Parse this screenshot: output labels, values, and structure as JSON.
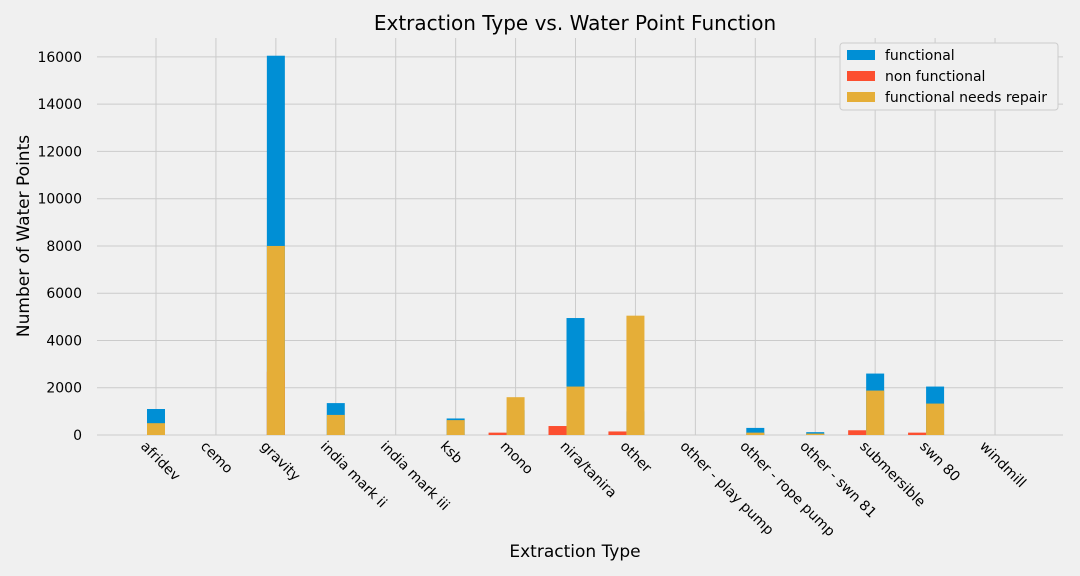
{
  "chart_data": {
    "type": "bar",
    "title": "Extraction Type vs. Water Point Function",
    "xlabel": "Extraction Type",
    "ylabel": "Number of Water Points",
    "ylim": [
      0,
      16800
    ],
    "yticks": [
      0,
      2000,
      4000,
      6000,
      8000,
      10000,
      12000,
      14000,
      16000
    ],
    "grid": true,
    "legend_position": "top-right",
    "categories": [
      "afridev",
      "cemo",
      "gravity",
      "india mark ii",
      "india mark iii",
      "ksb",
      "mono",
      "nira/tanira",
      "other",
      "other - play pump",
      "other - rope pump",
      "other - swn 81",
      "submersible",
      "swn 80",
      "windmill"
    ],
    "series": [
      {
        "name": "functional",
        "color": "#008fd5",
        "values": [
          1100,
          0,
          16050,
          1350,
          0,
          700,
          1050,
          4950,
          1000,
          0,
          300,
          120,
          2600,
          2050,
          0
        ],
        "offsets": [
          0,
          0,
          0,
          0,
          0,
          0,
          0,
          0,
          0,
          0,
          0,
          0,
          0,
          0,
          0
        ]
      },
      {
        "name": "non functional",
        "color": "#fc4f30",
        "values": [
          0,
          0,
          2680,
          0,
          0,
          0,
          100,
          380,
          150,
          0,
          0,
          0,
          200,
          100,
          0
        ],
        "offsets": [
          0,
          0,
          0,
          0,
          0,
          0,
          -1,
          -1,
          -1,
          0,
          0,
          0,
          -1,
          -1,
          0
        ]
      },
      {
        "name": "functional needs repair",
        "color": "#e5ae38",
        "values": [
          500,
          0,
          8000,
          850,
          0,
          630,
          1600,
          2050,
          5050,
          0,
          100,
          60,
          1880,
          1330,
          0
        ],
        "offsets": [
          0,
          0,
          0,
          0,
          0,
          0,
          0,
          0,
          0,
          0,
          0,
          0,
          0,
          0,
          0
        ]
      }
    ]
  }
}
